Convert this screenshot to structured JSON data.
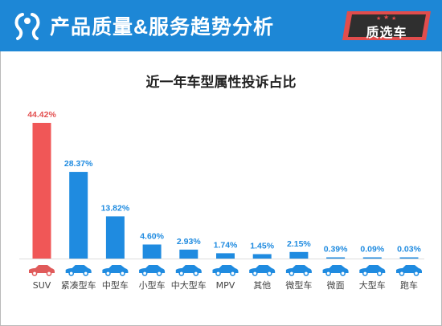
{
  "header": {
    "title": "产品质量&服务趋势分析",
    "badge": "质选车",
    "logo": "brand-logo-icon",
    "colors": {
      "band": "#1d87d6",
      "accent": "#e14d4d",
      "badge": "#2f2f2f"
    }
  },
  "chart_data": {
    "type": "bar",
    "title": "近一年车型属性投诉占比",
    "categories": [
      "SUV",
      "紧凑型车",
      "中型车",
      "小型车",
      "中大型车",
      "MPV",
      "其他",
      "微型车",
      "微面",
      "大型车",
      "跑车"
    ],
    "values": [
      44.42,
      28.37,
      13.82,
      4.6,
      2.93,
      1.74,
      1.45,
      2.15,
      0.39,
      0.09,
      0.03
    ],
    "value_labels": [
      "44.42%",
      "28.37%",
      "13.82%",
      "4.60%",
      "2.93%",
      "1.74%",
      "1.45%",
      "2.15%",
      "0.39%",
      "0.09%",
      "0.03%"
    ],
    "unit": "%",
    "ylim": [
      0,
      50
    ],
    "grid": false,
    "colors": {
      "highlight": "#f05757",
      "bar": "#1f8be0",
      "label_highlight": "#e35050",
      "label": "#1f8be0",
      "car_highlight": "#e05a5a",
      "car": "#1f8be0"
    }
  }
}
